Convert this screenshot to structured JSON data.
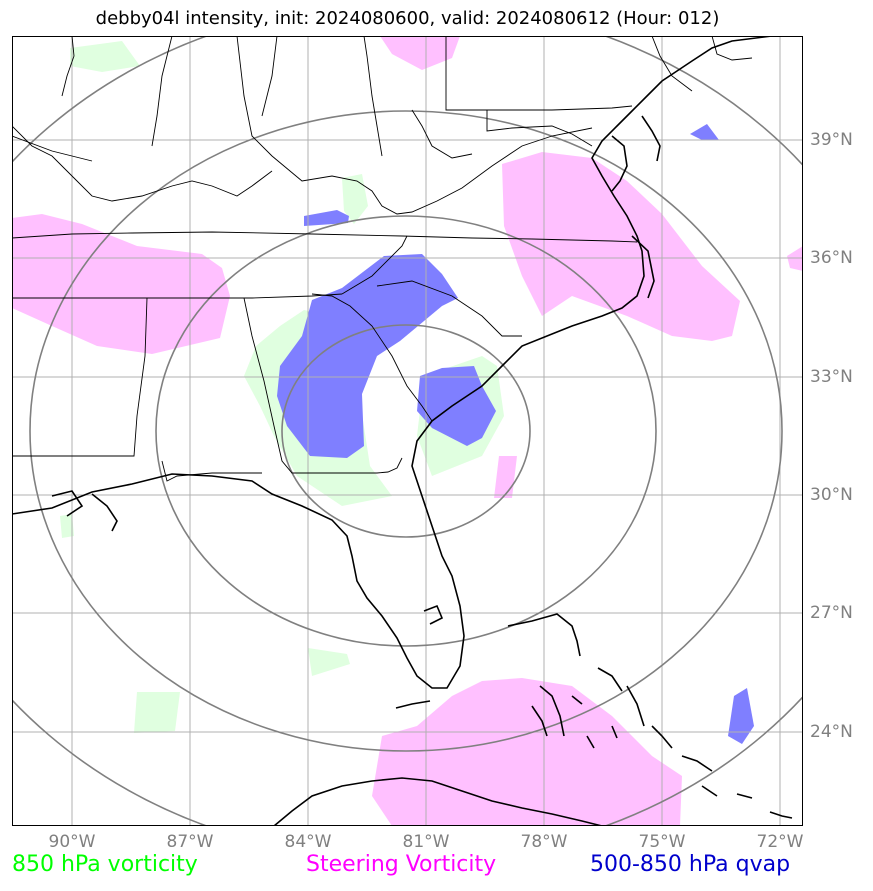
{
  "title": "debby04l intensity, init: 2024080600, valid: 2024080612 (Hour: 012)",
  "lon_labels": [
    "90°W",
    "87°W",
    "84°W",
    "81°W",
    "78°W",
    "75°W",
    "72°W"
  ],
  "lat_labels": [
    "39°N",
    "36°N",
    "33°N",
    "30°N",
    "27°N",
    "24°N"
  ],
  "legend": {
    "vort850": "850 hPa vorticity",
    "steering": "Steering Vorticity",
    "qvap": "500-850 hPa qvap"
  },
  "colors": {
    "vort850": "#00ff00",
    "steering": "#ff00ff",
    "qvap": "#0000cc",
    "vort850_fill": "#e0ffe0",
    "steering_fill": "#ffc0ff",
    "qvap_fill": "#7f7fff",
    "grid": "#b0b0b0",
    "rings": "#808080",
    "labels": "#808080"
  },
  "map_data": {
    "lon_range": [
      -91.5,
      -71.5
    ],
    "lat_range": [
      21.8,
      41.8
    ],
    "gridlines": true,
    "range_rings": 4
  }
}
